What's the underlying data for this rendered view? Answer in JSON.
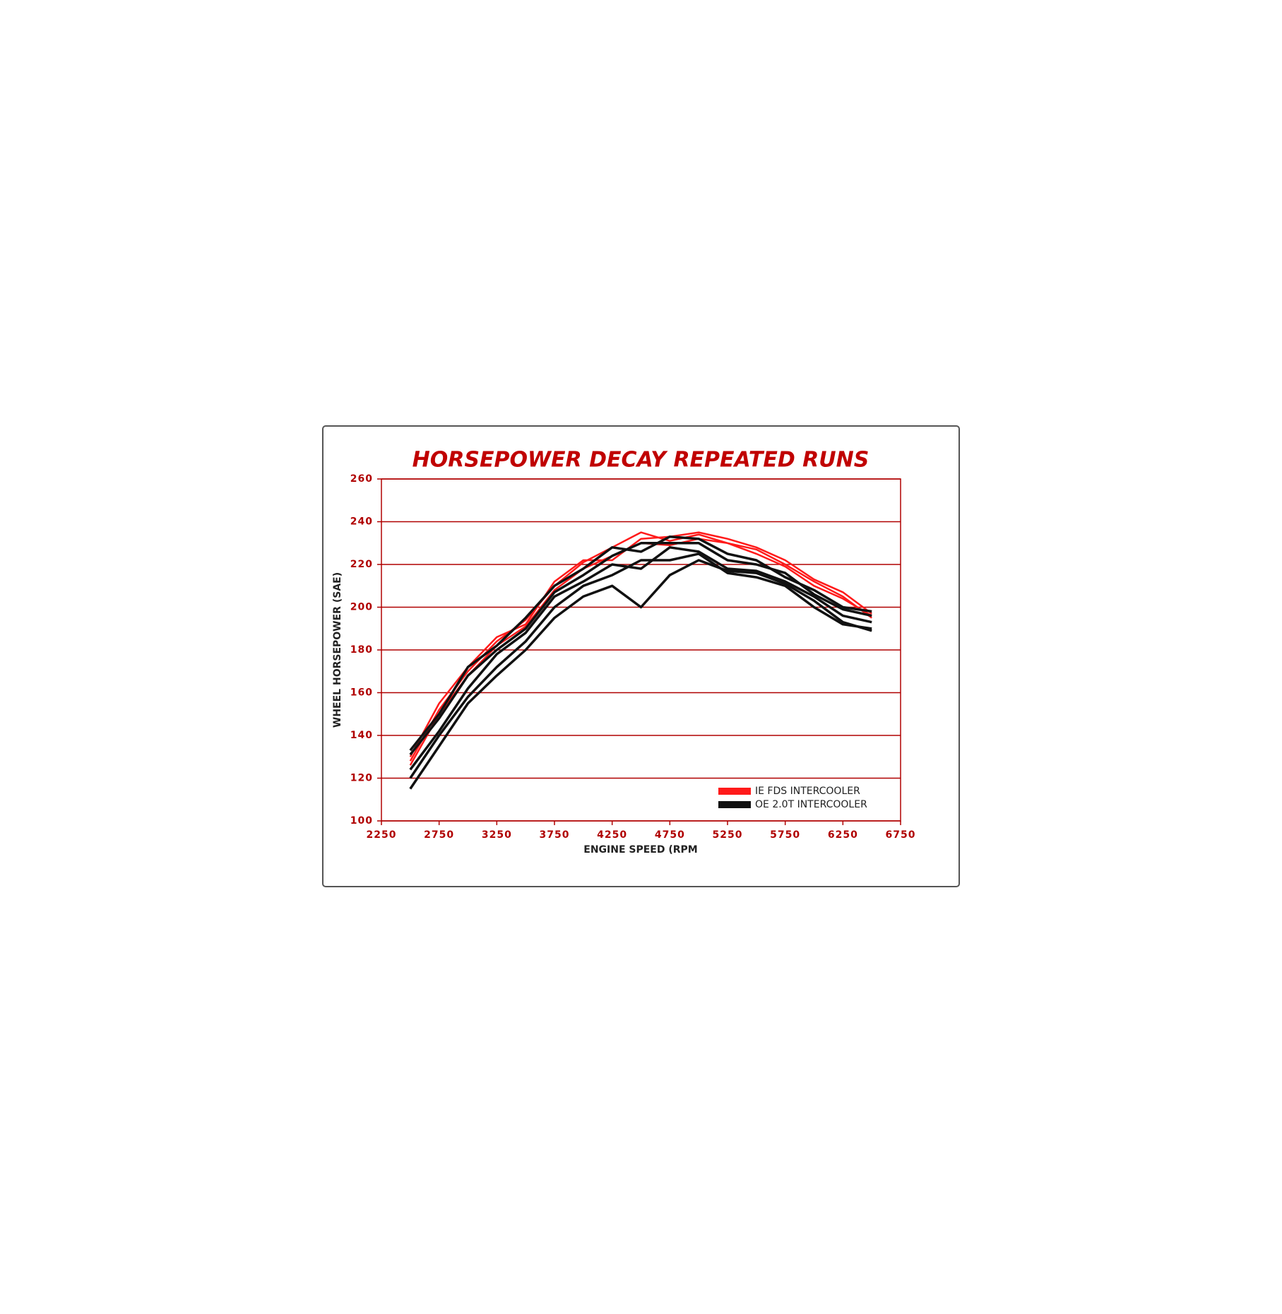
{
  "chart_data": {
    "type": "line",
    "title": "HORSEPOWER DECAY REPEATED RUNS",
    "x_label": "ENGINE SPEED (RPM",
    "y_label": "WHEEL HORSEPOWER (SAE)",
    "x": [
      2500,
      2750,
      3000,
      3250,
      3500,
      3750,
      4000,
      4250,
      4500,
      4750,
      5000,
      5250,
      5500,
      5750,
      6000,
      6250,
      6500
    ],
    "series": [
      {
        "name": "IE FDS INTERCOOLER",
        "color": "#ff1a1a",
        "runs": [
          [
            128,
            152,
            170,
            184,
            194,
            210,
            221,
            228,
            235,
            231,
            234,
            230,
            227,
            220,
            212,
            205,
            195
          ],
          [
            130,
            155,
            172,
            186,
            192,
            212,
            222,
            222,
            232,
            233,
            235,
            232,
            228,
            222,
            213,
            207,
            197
          ],
          [
            126,
            150,
            168,
            182,
            191,
            208,
            218,
            224,
            230,
            229,
            232,
            230,
            225,
            219,
            210,
            204,
            196
          ]
        ]
      },
      {
        "name": "OE 2.0T INTERCOOLER",
        "color": "#111111",
        "runs": [
          [
            133,
            150,
            172,
            182,
            195,
            210,
            218,
            228,
            226,
            233,
            232,
            225,
            222,
            214,
            208,
            200,
            198
          ],
          [
            131,
            148,
            168,
            180,
            190,
            207,
            215,
            224,
            230,
            230,
            230,
            222,
            220,
            216,
            206,
            199,
            196
          ],
          [
            124,
            142,
            162,
            178,
            188,
            205,
            212,
            220,
            218,
            228,
            226,
            218,
            217,
            212,
            205,
            196,
            193
          ],
          [
            120,
            140,
            158,
            172,
            184,
            200,
            210,
            215,
            222,
            222,
            225,
            216,
            214,
            210,
            200,
            192,
            190
          ],
          [
            115,
            135,
            155,
            168,
            180,
            195,
            205,
            210,
            200,
            215,
            222,
            217,
            216,
            211,
            203,
            193,
            189
          ]
        ]
      }
    ],
    "xlim": [
      2250,
      6750
    ],
    "xticks": [
      2250,
      2750,
      3250,
      3750,
      4250,
      4750,
      5250,
      5750,
      6250,
      6750
    ],
    "ylim": [
      100,
      260
    ],
    "yticks": [
      100,
      120,
      140,
      160,
      180,
      200,
      220,
      240,
      260
    ],
    "grid": true,
    "legend": "lower right"
  }
}
